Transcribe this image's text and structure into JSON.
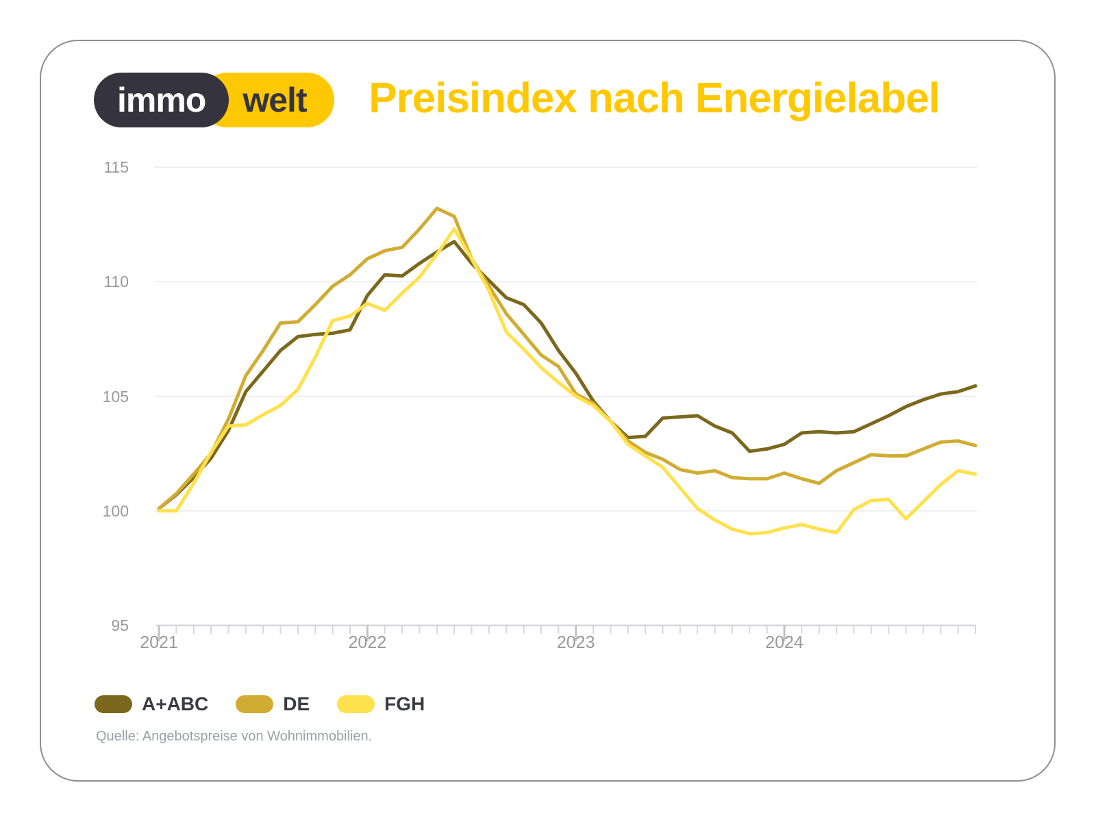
{
  "brand": {
    "logo_left": "immo",
    "logo_right": "welt",
    "logo_dark_color": "#35343e",
    "logo_yellow_color": "#ffc800"
  },
  "title": "Preisindex nach Energielabel",
  "title_color": "#ffc800",
  "source": "Quelle: Angebotspreise von Wohnimmobilien.",
  "chart_data": {
    "type": "line",
    "title": "Preisindex nach Energielabel",
    "x_start": "2021-01",
    "x_interval": "month",
    "n_points": 48,
    "x_tick_labels": [
      "2021",
      "2022",
      "2023",
      "2024"
    ],
    "x_major_tick_indices": [
      0,
      12,
      24,
      36
    ],
    "ylim": [
      95,
      115
    ],
    "y_tick_labels": [
      "95",
      "100",
      "105",
      "110",
      "115"
    ],
    "y_tick_values": [
      95,
      100,
      105,
      110,
      115
    ],
    "y_gridline_values": [
      100,
      105,
      110,
      115
    ],
    "grid": "horizontal",
    "legend_position": "bottom-left",
    "series": [
      {
        "name": "A+ABC",
        "color": "#7c681c",
        "values": [
          100.1,
          100.7,
          101.45,
          102.3,
          103.5,
          105.2,
          106.1,
          107.0,
          107.6,
          107.7,
          107.75,
          107.9,
          109.4,
          110.3,
          110.25,
          110.8,
          111.3,
          111.75,
          110.8,
          110.05,
          109.3,
          109.0,
          108.2,
          107.0,
          106.0,
          104.8,
          103.9,
          103.2,
          103.25,
          104.05,
          104.1,
          104.15,
          103.7,
          103.4,
          102.6,
          102.7,
          102.9,
          103.4,
          103.45,
          103.4,
          103.45,
          103.8,
          104.15,
          104.55,
          104.85,
          105.1,
          105.2,
          105.45
        ]
      },
      {
        "name": "DE",
        "color": "#d1ac33",
        "values": [
          100.1,
          100.75,
          101.6,
          102.5,
          104.0,
          105.9,
          107.0,
          108.2,
          108.25,
          109.0,
          109.8,
          110.3,
          111.0,
          111.35,
          111.5,
          112.3,
          113.2,
          112.85,
          111.0,
          109.8,
          108.6,
          107.7,
          106.8,
          106.3,
          105.1,
          104.7,
          103.9,
          103.05,
          102.55,
          102.25,
          101.8,
          101.65,
          101.75,
          101.45,
          101.4,
          101.4,
          101.65,
          101.4,
          101.2,
          101.75,
          102.1,
          102.45,
          102.4,
          102.4,
          102.7,
          103.0,
          103.05,
          102.85
        ]
      },
      {
        "name": "FGH",
        "color": "#ffe14e",
        "values": [
          100.0,
          100.0,
          101.2,
          102.55,
          103.7,
          103.75,
          104.2,
          104.6,
          105.3,
          106.7,
          108.3,
          108.5,
          109.05,
          108.75,
          109.5,
          110.2,
          111.2,
          112.3,
          111.0,
          109.6,
          107.8,
          107.05,
          106.25,
          105.6,
          105.0,
          104.6,
          103.9,
          102.9,
          102.4,
          101.9,
          101.0,
          100.1,
          99.6,
          99.2,
          99.0,
          99.05,
          99.25,
          99.4,
          99.2,
          99.05,
          100.05,
          100.45,
          100.5,
          99.65,
          100.4,
          101.15,
          101.75,
          101.6
        ]
      }
    ]
  }
}
